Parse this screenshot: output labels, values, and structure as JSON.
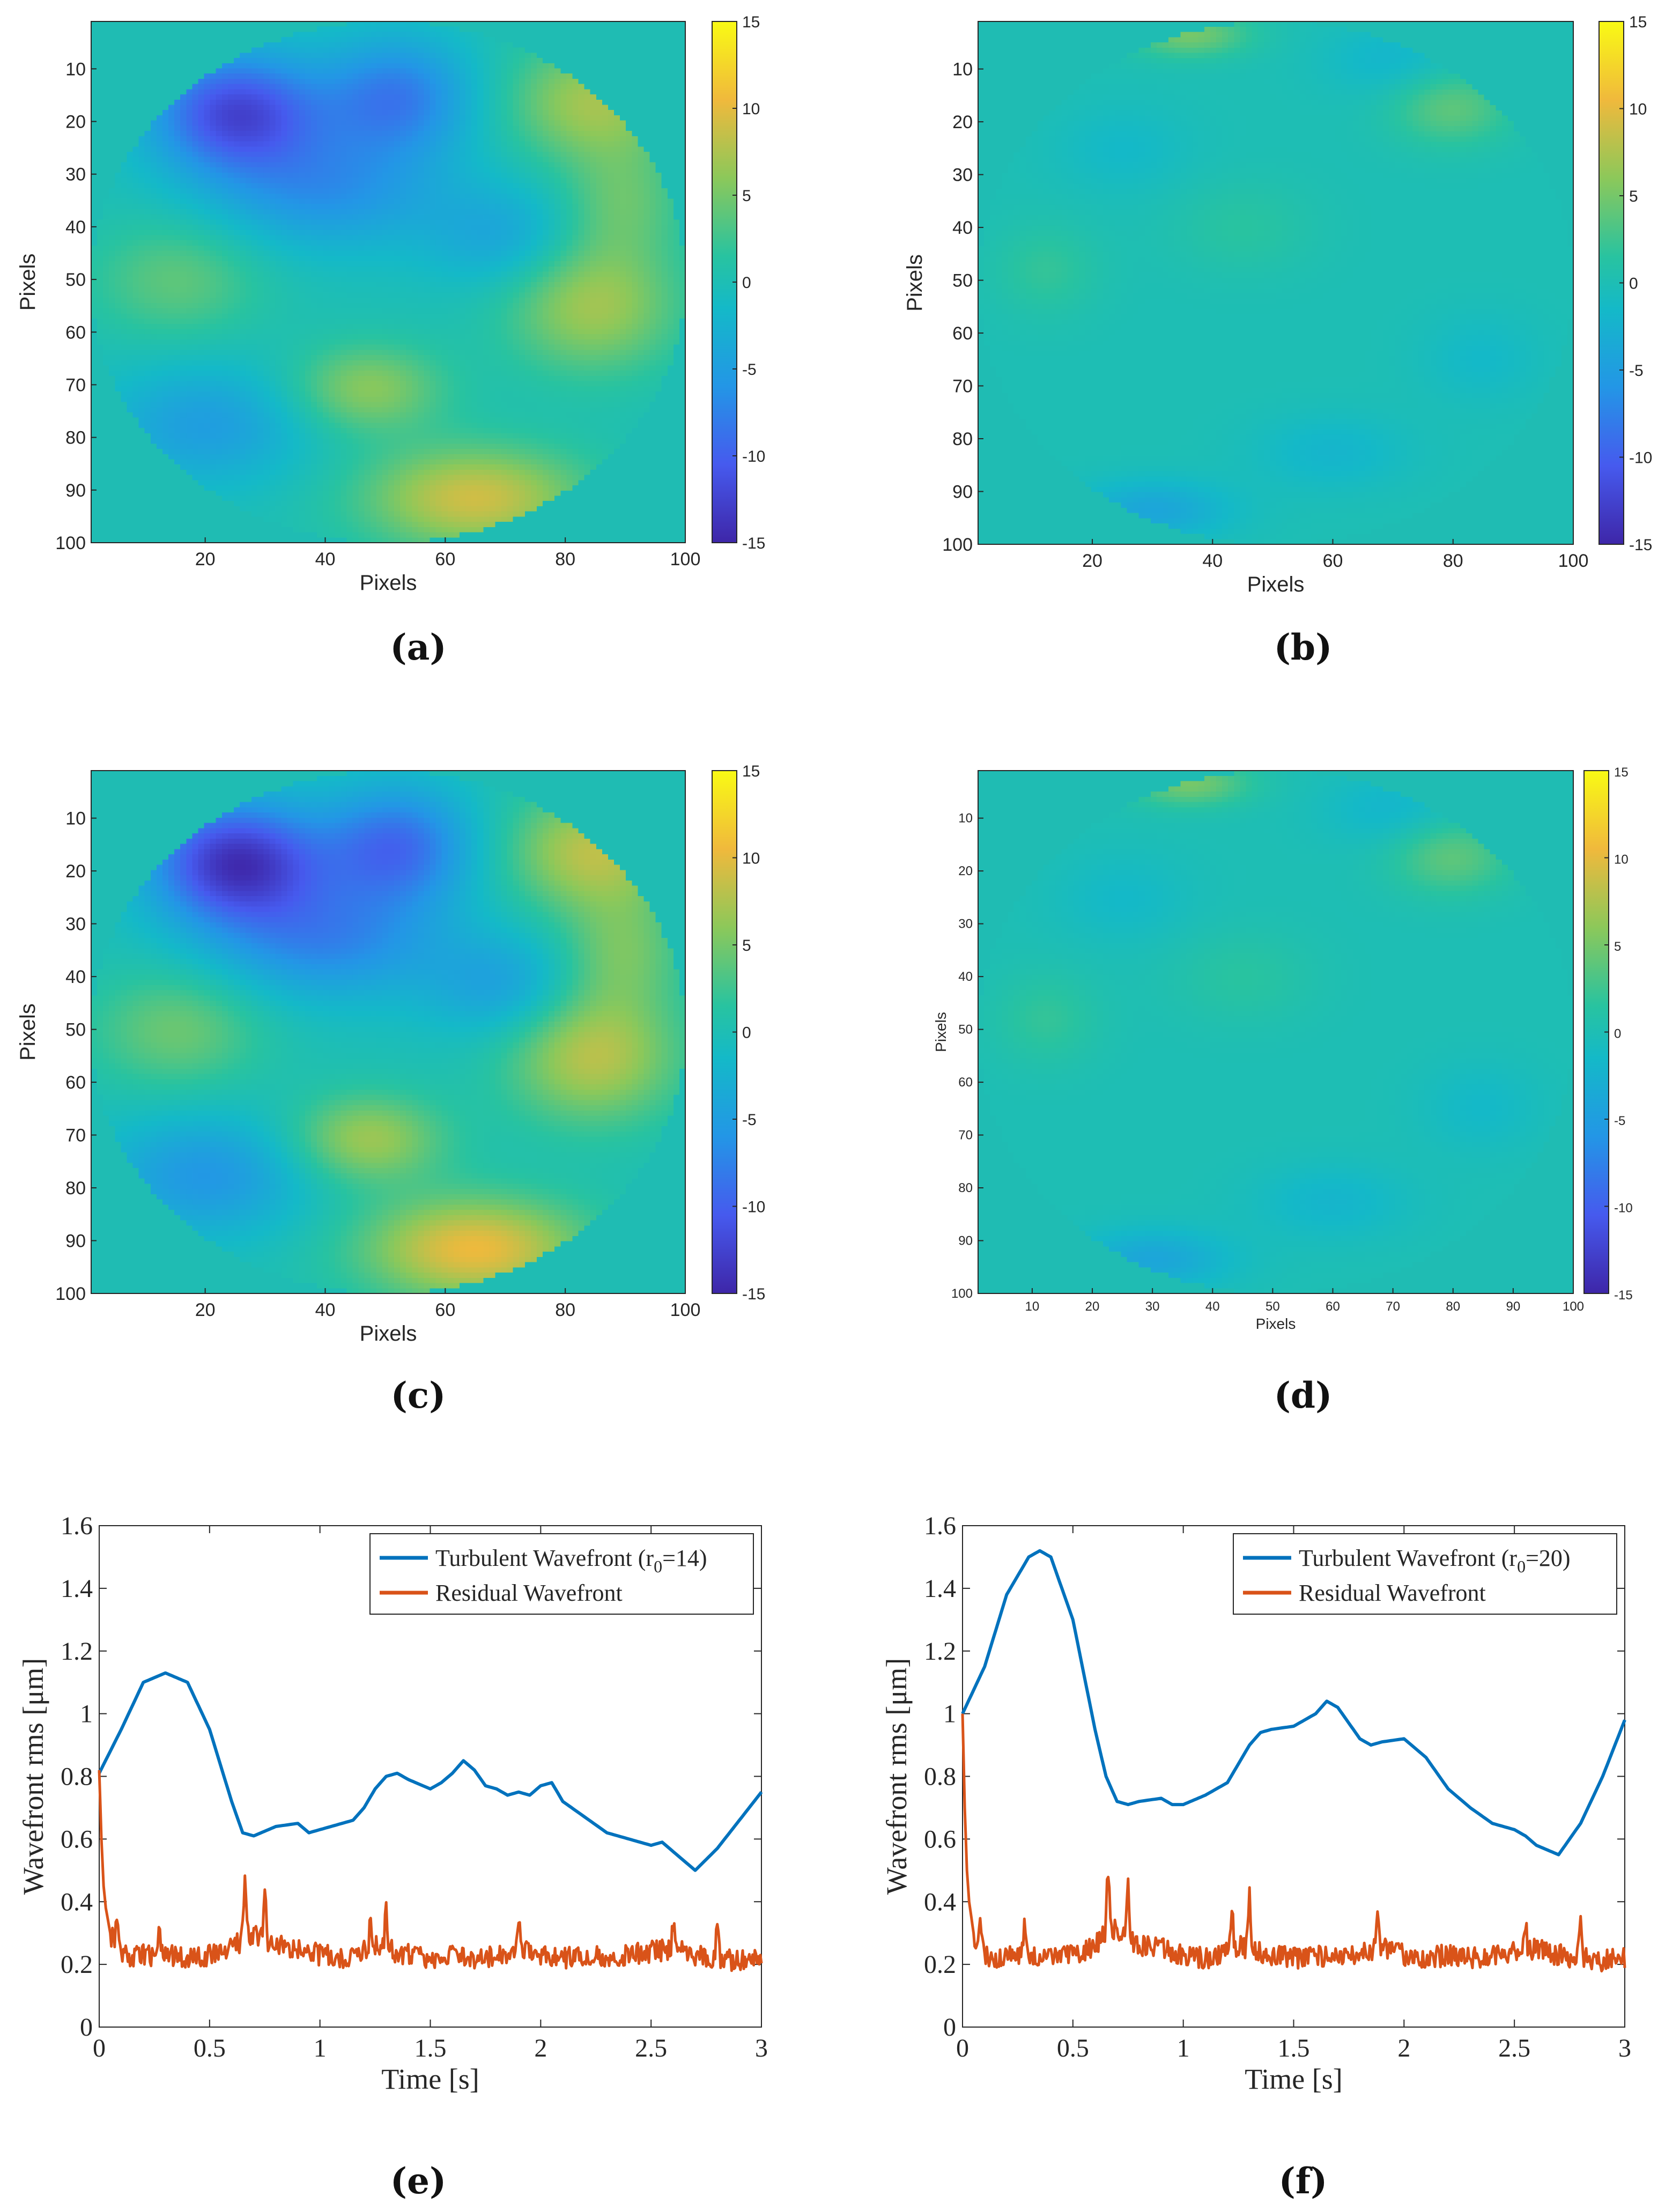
{
  "colors": {
    "turbulent": "#0072BD",
    "residual": "#D95319",
    "background_field": "#1fbcb3"
  },
  "chart_data": [
    {
      "id": "a",
      "type": "heatmap",
      "subfigure_label": "(a)",
      "xlabel": "Pixels",
      "ylabel": "Pixels",
      "xticks": [
        "20",
        "40",
        "60",
        "80",
        "100"
      ],
      "yticks": [
        "10",
        "20",
        "30",
        "40",
        "50",
        "60",
        "70",
        "80",
        "90",
        "100"
      ],
      "colorbar_ticks": [
        "15",
        "10",
        "5",
        "0",
        "-5",
        "-10",
        "-15"
      ],
      "clim": [
        -15,
        15
      ],
      "x_range": [
        1,
        100
      ],
      "y_range": [
        1,
        100
      ],
      "scale": 1.0,
      "blobs": [
        {
          "cx": 25,
          "cy": 18,
          "sx": 10,
          "sy": 8,
          "a": -12
        },
        {
          "cx": 52,
          "cy": 15,
          "sx": 9,
          "sy": 8,
          "a": -8
        },
        {
          "cx": 40,
          "cy": 33,
          "sx": 14,
          "sy": 8,
          "a": -6
        },
        {
          "cx": 85,
          "cy": 16,
          "sx": 10,
          "sy": 8,
          "a": 7
        },
        {
          "cx": 15,
          "cy": 50,
          "sx": 10,
          "sy": 8,
          "a": 4
        },
        {
          "cx": 85,
          "cy": 55,
          "sx": 10,
          "sy": 9,
          "a": 7
        },
        {
          "cx": 47,
          "cy": 71,
          "sx": 9,
          "sy": 6,
          "a": 6
        },
        {
          "cx": 65,
          "cy": 92,
          "sx": 13,
          "sy": 7,
          "a": 9
        },
        {
          "cx": 20,
          "cy": 78,
          "sx": 12,
          "sy": 8,
          "a": -5
        },
        {
          "cx": 70,
          "cy": 42,
          "sx": 9,
          "sy": 7,
          "a": -4
        },
        {
          "cx": 90,
          "cy": 35,
          "sx": 7,
          "sy": 8,
          "a": 4
        }
      ]
    },
    {
      "id": "b",
      "type": "heatmap",
      "subfigure_label": "(b)",
      "xlabel": "Pixels",
      "ylabel": "Pixels",
      "xticks": [
        "20",
        "40",
        "60",
        "80",
        "100"
      ],
      "yticks": [
        "10",
        "20",
        "30",
        "40",
        "50",
        "60",
        "70",
        "80",
        "90",
        "100"
      ],
      "colorbar_ticks": [
        "15",
        "10",
        "5",
        "0",
        "-5",
        "-10",
        "-15"
      ],
      "clim": [
        -15,
        15
      ],
      "x_range": [
        1,
        100
      ],
      "y_range": [
        1,
        100
      ],
      "scale": 1.0,
      "blobs": [
        {
          "cx": 36,
          "cy": 3,
          "sx": 7,
          "sy": 3,
          "a": 5
        },
        {
          "cx": 80,
          "cy": 17,
          "sx": 7,
          "sy": 5,
          "a": 4
        },
        {
          "cx": 70,
          "cy": 8,
          "sx": 8,
          "sy": 5,
          "a": -2
        },
        {
          "cx": 30,
          "cy": 94,
          "sx": 9,
          "sy": 4,
          "a": -4
        },
        {
          "cx": 12,
          "cy": 48,
          "sx": 6,
          "sy": 6,
          "a": 2
        },
        {
          "cx": 60,
          "cy": 83,
          "sx": 9,
          "sy": 5,
          "a": -2
        },
        {
          "cx": 45,
          "cy": 40,
          "sx": 8,
          "sy": 6,
          "a": 1.5
        },
        {
          "cx": 25,
          "cy": 25,
          "sx": 8,
          "sy": 6,
          "a": -1.5
        },
        {
          "cx": 85,
          "cy": 65,
          "sx": 7,
          "sy": 6,
          "a": -1.5
        }
      ]
    },
    {
      "id": "c",
      "type": "heatmap",
      "subfigure_label": "(c)",
      "xlabel": "Pixels",
      "ylabel": "Pixels",
      "xticks": [
        "20",
        "40",
        "60",
        "80",
        "100"
      ],
      "yticks": [
        "10",
        "20",
        "30",
        "40",
        "50",
        "60",
        "70",
        "80",
        "90",
        "100"
      ],
      "colorbar_ticks": [
        "15",
        "10",
        "5",
        "0",
        "-5",
        "-10",
        "-15"
      ],
      "clim": [
        -15,
        15
      ],
      "x_range": [
        1,
        100
      ],
      "y_range": [
        1,
        100
      ],
      "scale": 1.15,
      "blobs": [
        {
          "cx": 25,
          "cy": 18,
          "sx": 10,
          "sy": 8,
          "a": -12
        },
        {
          "cx": 52,
          "cy": 15,
          "sx": 9,
          "sy": 8,
          "a": -8
        },
        {
          "cx": 40,
          "cy": 33,
          "sx": 14,
          "sy": 8,
          "a": -6
        },
        {
          "cx": 85,
          "cy": 16,
          "sx": 10,
          "sy": 8,
          "a": 7
        },
        {
          "cx": 15,
          "cy": 50,
          "sx": 10,
          "sy": 8,
          "a": 4
        },
        {
          "cx": 85,
          "cy": 55,
          "sx": 10,
          "sy": 9,
          "a": 7
        },
        {
          "cx": 47,
          "cy": 71,
          "sx": 9,
          "sy": 6,
          "a": 6
        },
        {
          "cx": 65,
          "cy": 92,
          "sx": 13,
          "sy": 7,
          "a": 9
        },
        {
          "cx": 20,
          "cy": 78,
          "sx": 12,
          "sy": 8,
          "a": -5
        },
        {
          "cx": 70,
          "cy": 42,
          "sx": 9,
          "sy": 7,
          "a": -4
        },
        {
          "cx": 90,
          "cy": 35,
          "sx": 7,
          "sy": 8,
          "a": 4
        }
      ]
    },
    {
      "id": "d",
      "type": "heatmap",
      "subfigure_label": "(d)",
      "xlabel": "Pixels",
      "ylabel": "Pixels",
      "xticks": [
        "10",
        "20",
        "30",
        "40",
        "50",
        "60",
        "70",
        "80",
        "90",
        "100"
      ],
      "yticks": [
        "10",
        "20",
        "30",
        "40",
        "50",
        "60",
        "70",
        "80",
        "90",
        "100"
      ],
      "colorbar_ticks": [
        "15",
        "10",
        "5",
        "0",
        "-5",
        "-10",
        "-15"
      ],
      "clim": [
        -15,
        15
      ],
      "x_range": [
        1,
        100
      ],
      "y_range": [
        1,
        100
      ],
      "scale": 1.0,
      "blobs": [
        {
          "cx": 36,
          "cy": 3,
          "sx": 7,
          "sy": 3,
          "a": 5
        },
        {
          "cx": 80,
          "cy": 17,
          "sx": 7,
          "sy": 5,
          "a": 4
        },
        {
          "cx": 70,
          "cy": 8,
          "sx": 8,
          "sy": 5,
          "a": -2
        },
        {
          "cx": 30,
          "cy": 94,
          "sx": 9,
          "sy": 4,
          "a": -4
        },
        {
          "cx": 12,
          "cy": 48,
          "sx": 6,
          "sy": 6,
          "a": 2
        },
        {
          "cx": 60,
          "cy": 83,
          "sx": 9,
          "sy": 5,
          "a": -2
        },
        {
          "cx": 45,
          "cy": 40,
          "sx": 8,
          "sy": 6,
          "a": 1.5
        },
        {
          "cx": 25,
          "cy": 25,
          "sx": 8,
          "sy": 6,
          "a": -1.5
        },
        {
          "cx": 85,
          "cy": 65,
          "sx": 7,
          "sy": 6,
          "a": -1.5
        }
      ]
    },
    {
      "id": "e",
      "type": "line",
      "subfigure_label": "(e)",
      "xlabel": "Time [s]",
      "ylabel": "Wavefront rms [μm]",
      "xlim": [
        0,
        3
      ],
      "ylim": [
        0,
        1.6
      ],
      "xticks": [
        "0",
        "0.5",
        "1",
        "1.5",
        "2",
        "2.5",
        "3"
      ],
      "yticks": [
        "0",
        "0.2",
        "0.4",
        "0.6",
        "0.8",
        "1",
        "1.2",
        "1.4",
        "1.6"
      ],
      "series": [
        {
          "name": "Turbulent Wavefront (r0=14)",
          "legend_main": "Turbulent Wavefront (r",
          "legend_sub": "0",
          "legend_tail": "=14)",
          "color_key": "turbulent",
          "x": [
            0,
            0.1,
            0.2,
            0.3,
            0.4,
            0.5,
            0.6,
            0.65,
            0.7,
            0.8,
            0.9,
            0.95,
            1.0,
            1.05,
            1.1,
            1.15,
            1.2,
            1.25,
            1.3,
            1.35,
            1.4,
            1.5,
            1.55,
            1.6,
            1.65,
            1.7,
            1.75,
            1.8,
            1.85,
            1.9,
            1.95,
            2.0,
            2.05,
            2.1,
            2.2,
            2.3,
            2.4,
            2.5,
            2.55,
            2.6,
            2.7,
            2.8,
            2.9,
            3.0
          ],
          "y": [
            0.81,
            0.95,
            1.1,
            1.13,
            1.1,
            0.95,
            0.72,
            0.62,
            0.61,
            0.64,
            0.65,
            0.62,
            0.63,
            0.64,
            0.65,
            0.66,
            0.7,
            0.76,
            0.8,
            0.81,
            0.79,
            0.76,
            0.78,
            0.81,
            0.85,
            0.82,
            0.77,
            0.76,
            0.74,
            0.75,
            0.74,
            0.77,
            0.78,
            0.72,
            0.67,
            0.62,
            0.6,
            0.58,
            0.59,
            0.56,
            0.5,
            0.57,
            0.66,
            0.75
          ]
        },
        {
          "name": "Residual Wavefront",
          "legend_main": "Residual Wavefront",
          "color_key": "residual",
          "x": [
            0,
            0.01,
            0.02,
            0.03,
            0.05,
            0.07,
            0.1,
            0.15,
            0.2,
            0.25,
            0.3,
            0.4,
            0.5,
            0.6,
            0.65,
            0.7,
            0.75,
            0.8,
            0.9,
            1.0,
            1.1,
            1.2,
            1.25,
            1.3,
            1.4,
            1.5,
            1.6,
            1.7,
            1.8,
            1.9,
            2.0,
            2.1,
            2.2,
            2.3,
            2.4,
            2.5,
            2.6,
            2.7,
            2.8,
            2.9,
            3.0
          ],
          "y": [
            0.82,
            0.6,
            0.45,
            0.38,
            0.3,
            0.27,
            0.23,
            0.22,
            0.23,
            0.22,
            0.23,
            0.22,
            0.23,
            0.25,
            0.28,
            0.3,
            0.27,
            0.26,
            0.25,
            0.23,
            0.22,
            0.24,
            0.26,
            0.25,
            0.23,
            0.22,
            0.23,
            0.22,
            0.23,
            0.25,
            0.23,
            0.22,
            0.23,
            0.22,
            0.23,
            0.24,
            0.25,
            0.23,
            0.22,
            0.21,
            0.22
          ],
          "spikes": [
            [
              0.08,
              0.34
            ],
            [
              0.27,
              0.32
            ],
            [
              0.66,
              0.48
            ],
            [
              0.75,
              0.42
            ],
            [
              1.23,
              0.35
            ],
            [
              1.3,
              0.38
            ],
            [
              1.9,
              0.33
            ],
            [
              2.6,
              0.32
            ],
            [
              2.8,
              0.35
            ]
          ]
        }
      ]
    },
    {
      "id": "f",
      "type": "line",
      "subfigure_label": "(f)",
      "xlabel": "Time [s]",
      "ylabel": "Wavefront rms [μm]",
      "xlim": [
        0,
        3
      ],
      "ylim": [
        0,
        1.6
      ],
      "xticks": [
        "0",
        "0.5",
        "1",
        "1.5",
        "2",
        "2.5",
        "3"
      ],
      "yticks": [
        "0",
        "0.2",
        "0.4",
        "0.6",
        "0.8",
        "1",
        "1.2",
        "1.4",
        "1.6"
      ],
      "series": [
        {
          "name": "Turbulent Wavefront (r0=20)",
          "legend_main": "Turbulent Wavefront (r",
          "legend_sub": "0",
          "legend_tail": "=20)",
          "color_key": "turbulent",
          "x": [
            0,
            0.1,
            0.2,
            0.3,
            0.35,
            0.4,
            0.5,
            0.6,
            0.65,
            0.7,
            0.75,
            0.8,
            0.9,
            0.95,
            1.0,
            1.1,
            1.2,
            1.3,
            1.35,
            1.4,
            1.5,
            1.6,
            1.65,
            1.7,
            1.8,
            1.85,
            1.9,
            2.0,
            2.1,
            2.2,
            2.3,
            2.4,
            2.5,
            2.55,
            2.6,
            2.7,
            2.8,
            2.9,
            3.0
          ],
          "y": [
            1.0,
            1.15,
            1.38,
            1.5,
            1.52,
            1.5,
            1.3,
            0.95,
            0.8,
            0.72,
            0.71,
            0.72,
            0.73,
            0.71,
            0.71,
            0.74,
            0.78,
            0.9,
            0.94,
            0.95,
            0.96,
            1.0,
            1.04,
            1.02,
            0.92,
            0.9,
            0.91,
            0.92,
            0.86,
            0.76,
            0.7,
            0.65,
            0.63,
            0.61,
            0.58,
            0.55,
            0.65,
            0.8,
            0.98
          ]
        },
        {
          "name": "Residual Wavefront",
          "legend_main": "Residual Wavefront",
          "color_key": "residual",
          "x": [
            0,
            0.01,
            0.02,
            0.03,
            0.05,
            0.07,
            0.1,
            0.15,
            0.2,
            0.25,
            0.3,
            0.4,
            0.5,
            0.6,
            0.65,
            0.7,
            0.75,
            0.8,
            0.9,
            1.0,
            1.1,
            1.2,
            1.25,
            1.3,
            1.4,
            1.5,
            1.6,
            1.7,
            1.8,
            1.9,
            2.0,
            2.1,
            2.2,
            2.3,
            2.4,
            2.5,
            2.6,
            2.7,
            2.8,
            2.9,
            3.0
          ],
          "y": [
            1.0,
            0.7,
            0.5,
            0.4,
            0.3,
            0.27,
            0.23,
            0.22,
            0.23,
            0.22,
            0.23,
            0.22,
            0.23,
            0.26,
            0.3,
            0.31,
            0.28,
            0.26,
            0.25,
            0.23,
            0.22,
            0.24,
            0.26,
            0.25,
            0.23,
            0.22,
            0.23,
            0.22,
            0.23,
            0.25,
            0.23,
            0.22,
            0.23,
            0.22,
            0.23,
            0.24,
            0.25,
            0.23,
            0.22,
            0.21,
            0.22
          ],
          "spikes": [
            [
              0.08,
              0.36
            ],
            [
              0.28,
              0.33
            ],
            [
              0.66,
              0.51
            ],
            [
              0.75,
              0.44
            ],
            [
              1.22,
              0.38
            ],
            [
              1.3,
              0.42
            ],
            [
              1.88,
              0.36
            ],
            [
              2.55,
              0.33
            ],
            [
              2.8,
              0.34
            ]
          ]
        }
      ]
    }
  ]
}
